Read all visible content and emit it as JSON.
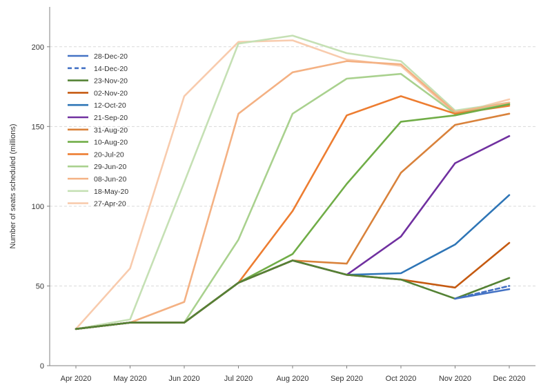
{
  "chart_data": {
    "type": "line",
    "title": "",
    "xlabel": "",
    "ylabel": "Number of seats scheduled (millions)",
    "ylim": [
      0,
      225
    ],
    "yticks": [
      0,
      50,
      100,
      150,
      200
    ],
    "grid": "horizontal dashed",
    "legend_position": "top-left",
    "categories": [
      "Apr 2020",
      "May 2020",
      "Jun 2020",
      "Jul 2020",
      "Aug 2020",
      "Sep 2020",
      "Oct 2020",
      "Nov 2020",
      "Dec 2020"
    ],
    "series": [
      {
        "name": "28-Dec-20",
        "color": "#4472c4",
        "dash": false,
        "values": [
          null,
          null,
          null,
          null,
          null,
          null,
          null,
          42,
          48
        ]
      },
      {
        "name": "14-Dec-20",
        "color": "#4472c4",
        "dash": true,
        "values": [
          null,
          null,
          null,
          null,
          null,
          null,
          null,
          42,
          50
        ]
      },
      {
        "name": "23-Nov-20",
        "color": "#548235",
        "dash": false,
        "values": [
          23,
          27,
          27,
          52,
          66,
          57,
          54,
          42,
          55
        ]
      },
      {
        "name": "02-Nov-20",
        "color": "#c55a11",
        "dash": false,
        "values": [
          23,
          27,
          27,
          52,
          66,
          57,
          54,
          49,
          77
        ]
      },
      {
        "name": "12-Oct-20",
        "color": "#2e75b6",
        "dash": false,
        "values": [
          23,
          27,
          27,
          52,
          66,
          57,
          58,
          76,
          107
        ]
      },
      {
        "name": "21-Sep-20",
        "color": "#7030a0",
        "dash": false,
        "values": [
          23,
          27,
          27,
          52,
          66,
          57,
          81,
          127,
          144
        ]
      },
      {
        "name": "31-Aug-20",
        "color": "#d9823b",
        "dash": false,
        "values": [
          23,
          27,
          27,
          52,
          66,
          64,
          121,
          151,
          158
        ]
      },
      {
        "name": "10-Aug-20",
        "color": "#70ad47",
        "dash": false,
        "values": [
          23,
          27,
          27,
          52,
          70,
          114,
          153,
          157,
          164
        ]
      },
      {
        "name": "20-Jul-20",
        "color": "#ed7d31",
        "dash": false,
        "values": [
          23,
          27,
          27,
          52,
          97,
          157,
          169,
          158,
          163
        ]
      },
      {
        "name": "29-Jun-20",
        "color": "#a9d18e",
        "dash": false,
        "values": [
          23,
          27,
          27,
          79,
          158,
          180,
          183,
          158,
          164
        ]
      },
      {
        "name": "08-Jun-20",
        "color": "#f4b183",
        "dash": false,
        "values": [
          23,
          27,
          40,
          158,
          184,
          191,
          189,
          159,
          165
        ]
      },
      {
        "name": "18-May-20",
        "color": "#c5e0b4",
        "dash": false,
        "values": [
          23,
          29,
          115,
          202,
          207,
          196,
          191,
          160,
          165
        ]
      },
      {
        "name": "27-Apr-20",
        "color": "#f8cbad",
        "dash": false,
        "values": [
          23,
          61,
          169,
          203,
          204,
          192,
          188,
          158,
          167
        ]
      }
    ]
  }
}
